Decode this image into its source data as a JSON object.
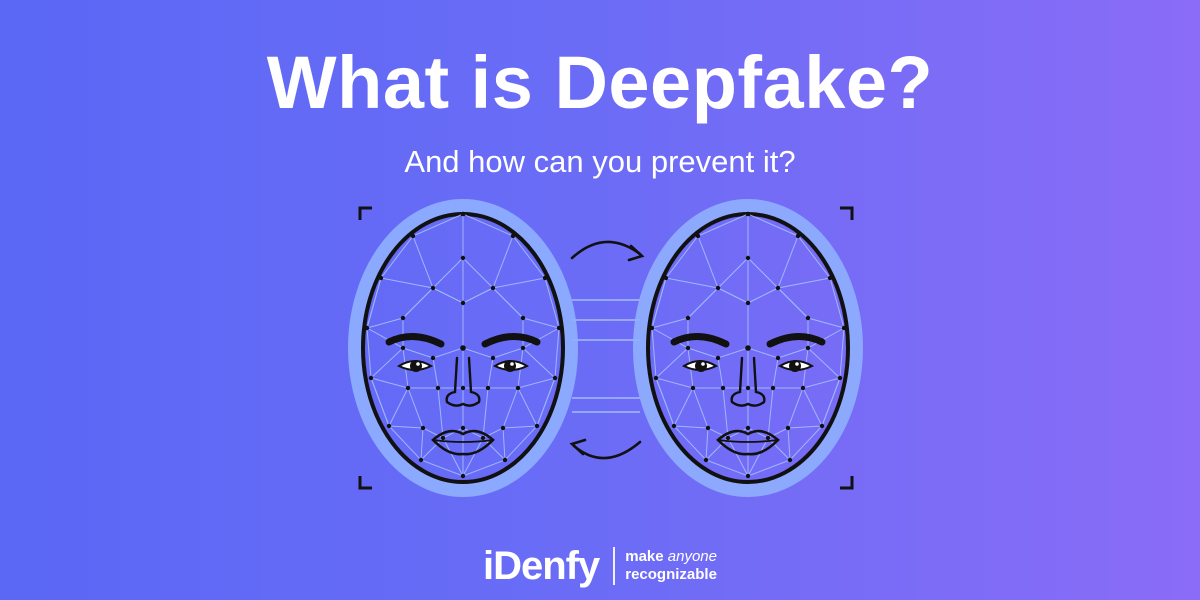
{
  "headline": "What is Deepfake?",
  "subheadline": "And how can you prevent it?",
  "brand": {
    "logo": "iDenfy",
    "tagline_line1_a": "make",
    "tagline_line1_b": "anyone",
    "tagline_line2": "recognizable"
  },
  "colors": {
    "background_start": "#5a68f5",
    "background_end": "#8a6cf7",
    "face_glow": "#8fb0ff",
    "mesh_line": "#a9c4ff",
    "outline": "#111111"
  },
  "icons": [
    "face-mesh-left-icon",
    "face-mesh-right-icon",
    "swap-arrow-top-icon",
    "swap-arrow-bottom-icon",
    "scan-frame-corner-icon"
  ]
}
